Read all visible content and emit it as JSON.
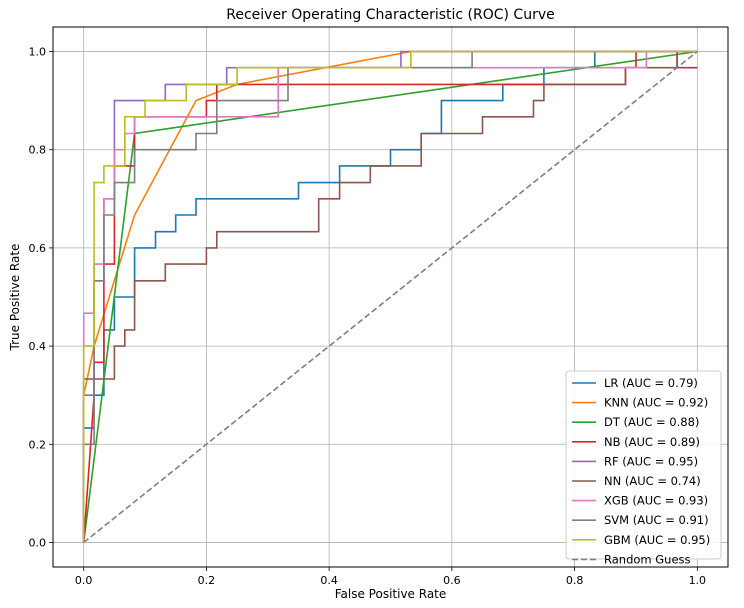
{
  "chart_data": {
    "type": "line",
    "title": "Receiver Operating Characteristic (ROC) Curve",
    "xlabel": "False Positive Rate",
    "ylabel": "True Positive Rate",
    "xlim": [
      -0.05,
      1.05
    ],
    "ylim": [
      -0.05,
      1.05
    ],
    "xticks": [
      "0.0",
      "0.2",
      "0.4",
      "0.6",
      "0.8",
      "1.0"
    ],
    "yticks": [
      "0.0",
      "0.2",
      "0.4",
      "0.6",
      "0.8",
      "1.0"
    ],
    "grid": true,
    "legend_position": "lower-right",
    "series": [
      {
        "name": "LR (AUC = 0.79)",
        "color": "#1f77b4",
        "step": true,
        "x": [
          0,
          0,
          0.017,
          0.017,
          0.033,
          0.033,
          0.05,
          0.05,
          0.083,
          0.083,
          0.117,
          0.117,
          0.15,
          0.15,
          0.183,
          0.183,
          0.35,
          0.35,
          0.417,
          0.417,
          0.5,
          0.5,
          0.55,
          0.55,
          0.583,
          0.583,
          0.683,
          0.683,
          0.75,
          0.75,
          0.833,
          0.833,
          1.0
        ],
        "y": [
          0,
          0.233,
          0.233,
          0.3,
          0.3,
          0.433,
          0.433,
          0.5,
          0.5,
          0.6,
          0.6,
          0.633,
          0.633,
          0.667,
          0.667,
          0.7,
          0.7,
          0.733,
          0.733,
          0.767,
          0.767,
          0.8,
          0.8,
          0.833,
          0.833,
          0.9,
          0.9,
          0.933,
          0.933,
          0.967,
          0.967,
          1.0,
          1.0
        ]
      },
      {
        "name": "KNN (AUC = 0.92)",
        "color": "#ff7f0e",
        "step": false,
        "x": [
          0,
          0,
          0.017,
          0.083,
          0.183,
          0.25,
          0.533,
          1.0
        ],
        "y": [
          0,
          0.3,
          0.4,
          0.667,
          0.9,
          0.933,
          1.0,
          1.0
        ]
      },
      {
        "name": "DT (AUC = 0.88)",
        "color": "#2ca02c",
        "step": false,
        "x": [
          0,
          0.083,
          1.0
        ],
        "y": [
          0,
          0.833,
          1.0
        ]
      },
      {
        "name": "NB (AUC = 0.89)",
        "color": "#d62728",
        "step": true,
        "x": [
          0,
          0.017,
          0.017,
          0.033,
          0.033,
          0.05,
          0.05,
          0.083,
          0.083,
          0.2,
          0.2,
          0.217,
          0.217,
          0.333,
          0.333,
          0.883,
          0.883,
          0.9,
          0.9,
          0.967,
          0.967,
          1.0
        ],
        "y": [
          0,
          0.3,
          0.367,
          0.367,
          0.567,
          0.567,
          0.767,
          0.767,
          0.867,
          0.867,
          0.9,
          0.9,
          0.933,
          0.933,
          0.933,
          0.933,
          0.967,
          0.967,
          1.0,
          1.0,
          0.967,
          0.967
        ]
      },
      {
        "name": "RF (AUC = 0.95)",
        "color": "#9467bd",
        "step": true,
        "x": [
          0,
          0,
          0.017,
          0.017,
          0.033,
          0.033,
          0.05,
          0.05,
          0.133,
          0.133,
          0.233,
          0.233,
          0.5,
          0.5,
          0.517,
          0.517,
          1.0
        ],
        "y": [
          0,
          0.3,
          0.3,
          0.533,
          0.533,
          0.7,
          0.7,
          0.9,
          0.9,
          0.933,
          0.933,
          0.967,
          0.967,
          0.967,
          0.967,
          1.0,
          1.0
        ]
      },
      {
        "name": "NN (AUC = 0.74)",
        "color": "#8c564b",
        "step": true,
        "x": [
          0,
          0,
          0.033,
          0.033,
          0.05,
          0.05,
          0.067,
          0.067,
          0.083,
          0.083,
          0.133,
          0.133,
          0.2,
          0.2,
          0.217,
          0.217,
          0.383,
          0.383,
          0.417,
          0.417,
          0.467,
          0.467,
          0.55,
          0.55,
          0.633,
          0.633,
          0.65,
          0.65,
          0.733,
          0.733,
          0.75,
          0.75,
          0.883,
          0.883,
          0.967,
          0.967,
          1.0
        ],
        "y": [
          0,
          0.333,
          0.333,
          0.333,
          0.333,
          0.4,
          0.4,
          0.433,
          0.433,
          0.533,
          0.533,
          0.567,
          0.567,
          0.6,
          0.6,
          0.633,
          0.633,
          0.7,
          0.7,
          0.733,
          0.733,
          0.767,
          0.767,
          0.833,
          0.833,
          0.833,
          0.833,
          0.867,
          0.867,
          0.9,
          0.9,
          0.933,
          0.933,
          0.967,
          0.967,
          1.0,
          1.0
        ]
      },
      {
        "name": "XGB (AUC = 0.93)",
        "color": "#e377c2",
        "step": true,
        "x": [
          0,
          0,
          0.017,
          0.017,
          0.033,
          0.033,
          0.05,
          0.05,
          0.067,
          0.067,
          0.083,
          0.083,
          0.317,
          0.317,
          0.917,
          0.917,
          1.0
        ],
        "y": [
          0,
          0.467,
          0.467,
          0.567,
          0.567,
          0.7,
          0.7,
          0.8,
          0.8,
          0.833,
          0.833,
          0.867,
          0.867,
          0.967,
          0.967,
          1.0,
          1.0
        ]
      },
      {
        "name": "SVM (AUC = 0.91)",
        "color": "#7f7f7f",
        "step": true,
        "x": [
          0,
          0,
          0.017,
          0.017,
          0.033,
          0.033,
          0.05,
          0.05,
          0.083,
          0.083,
          0.183,
          0.183,
          0.217,
          0.217,
          0.333,
          0.333,
          0.633,
          0.633,
          1.0
        ],
        "y": [
          0,
          0.2,
          0.2,
          0.533,
          0.533,
          0.667,
          0.667,
          0.733,
          0.733,
          0.8,
          0.8,
          0.833,
          0.833,
          0.9,
          0.9,
          0.967,
          0.967,
          1.0,
          1.0
        ]
      },
      {
        "name": "GBM (AUC = 0.95)",
        "color": "#bcbd22",
        "step": true,
        "x": [
          0,
          0,
          0.017,
          0.017,
          0.033,
          0.033,
          0.067,
          0.067,
          0.1,
          0.1,
          0.167,
          0.167,
          0.25,
          0.25,
          0.533,
          0.533,
          1.0
        ],
        "y": [
          0,
          0.4,
          0.4,
          0.733,
          0.733,
          0.767,
          0.767,
          0.867,
          0.867,
          0.9,
          0.9,
          0.933,
          0.933,
          0.967,
          0.967,
          1.0,
          1.0
        ]
      },
      {
        "name": "Random Guess",
        "color": "#7f7f7f",
        "step": false,
        "dashed": true,
        "x": [
          0,
          1
        ],
        "y": [
          0,
          1
        ]
      }
    ]
  }
}
